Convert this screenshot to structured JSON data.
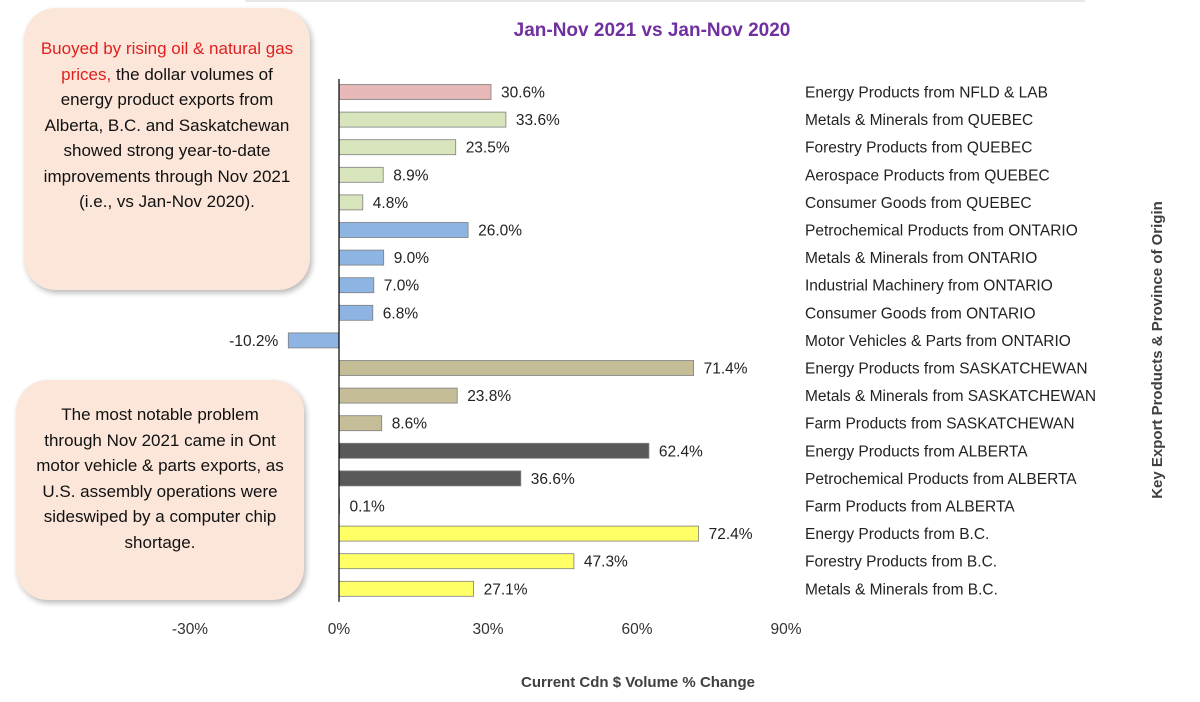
{
  "notes": {
    "top_highlight": "Buoyed by rising oil & natural gas prices,",
    "top_rest": " the dollar volumes of energy product exports from Alberta, B.C. and Saskatchewan showed strong year-to-date improvements through Nov 2021 (i.e., vs Jan-Nov 2020).",
    "bottom": "The most notable problem through Nov 2021 came in Ont motor vehicle & parts exports, as U.S. assembly operations were sideswiped by a computer chip shortage."
  },
  "colors": {
    "title": "#7030a0",
    "axis_label": "#404040",
    "nfld": "#e6b8b7",
    "quebec": "#d8e4bc",
    "ontario": "#8db4e2",
    "saskatchewan": "#c4bd97",
    "alberta": "#595959",
    "bc": "#ffff66"
  },
  "chart_data": {
    "type": "bar",
    "orientation": "horizontal",
    "title": "Jan-Nov 2021 vs Jan-Nov 2020",
    "xlabel": "Current Cdn $ Volume % Change",
    "ylabel": "Key Export Products & Province of Origin",
    "xlim": [
      -30,
      90
    ],
    "xticks": [
      "-30%",
      "0%",
      "30%",
      "60%",
      "90%"
    ],
    "xtick_values": [
      -30,
      0,
      30,
      60,
      90
    ],
    "grid": false,
    "categories": [
      "Energy Products from NFLD & LAB",
      "Metals & Minerals from QUEBEC",
      "Forestry Products from QUEBEC",
      "Aerospace Products from QUEBEC",
      "Consumer Goods from QUEBEC",
      "Petrochemical Products from ONTARIO",
      "Metals & Minerals from ONTARIO",
      "Industrial Machinery from ONTARIO",
      "Consumer Goods from ONTARIO",
      "Motor Vehicles & Parts from ONTARIO",
      "Energy Products from SASKATCHEWAN",
      "Metals & Minerals from SASKATCHEWAN",
      "Farm Products from SASKATCHEWAN",
      "Energy Products from ALBERTA",
      "Petrochemical Products from ALBERTA",
      "Farm Products from ALBERTA",
      "Energy Products from B.C.",
      "Forestry Products from B.C.",
      "Metals & Minerals from B.C."
    ],
    "values": [
      30.6,
      33.6,
      23.5,
      8.9,
      4.8,
      26.0,
      9.0,
      7.0,
      6.8,
      -10.2,
      71.4,
      23.8,
      8.6,
      62.4,
      36.6,
      0.1,
      72.4,
      47.3,
      27.1
    ],
    "value_labels": [
      "30.6%",
      "33.6%",
      "23.5%",
      "8.9%",
      "4.8%",
      "26.0%",
      "9.0%",
      "7.0%",
      "6.8%",
      "-10.2%",
      "71.4%",
      "23.8%",
      "8.6%",
      "62.4%",
      "36.6%",
      "0.1%",
      "72.4%",
      "47.3%",
      "27.1%"
    ],
    "bar_groups": [
      "nfld",
      "quebec",
      "quebec",
      "quebec",
      "quebec",
      "ontario",
      "ontario",
      "ontario",
      "ontario",
      "ontario",
      "saskatchewan",
      "saskatchewan",
      "saskatchewan",
      "alberta",
      "alberta",
      "alberta",
      "bc",
      "bc",
      "bc"
    ]
  }
}
